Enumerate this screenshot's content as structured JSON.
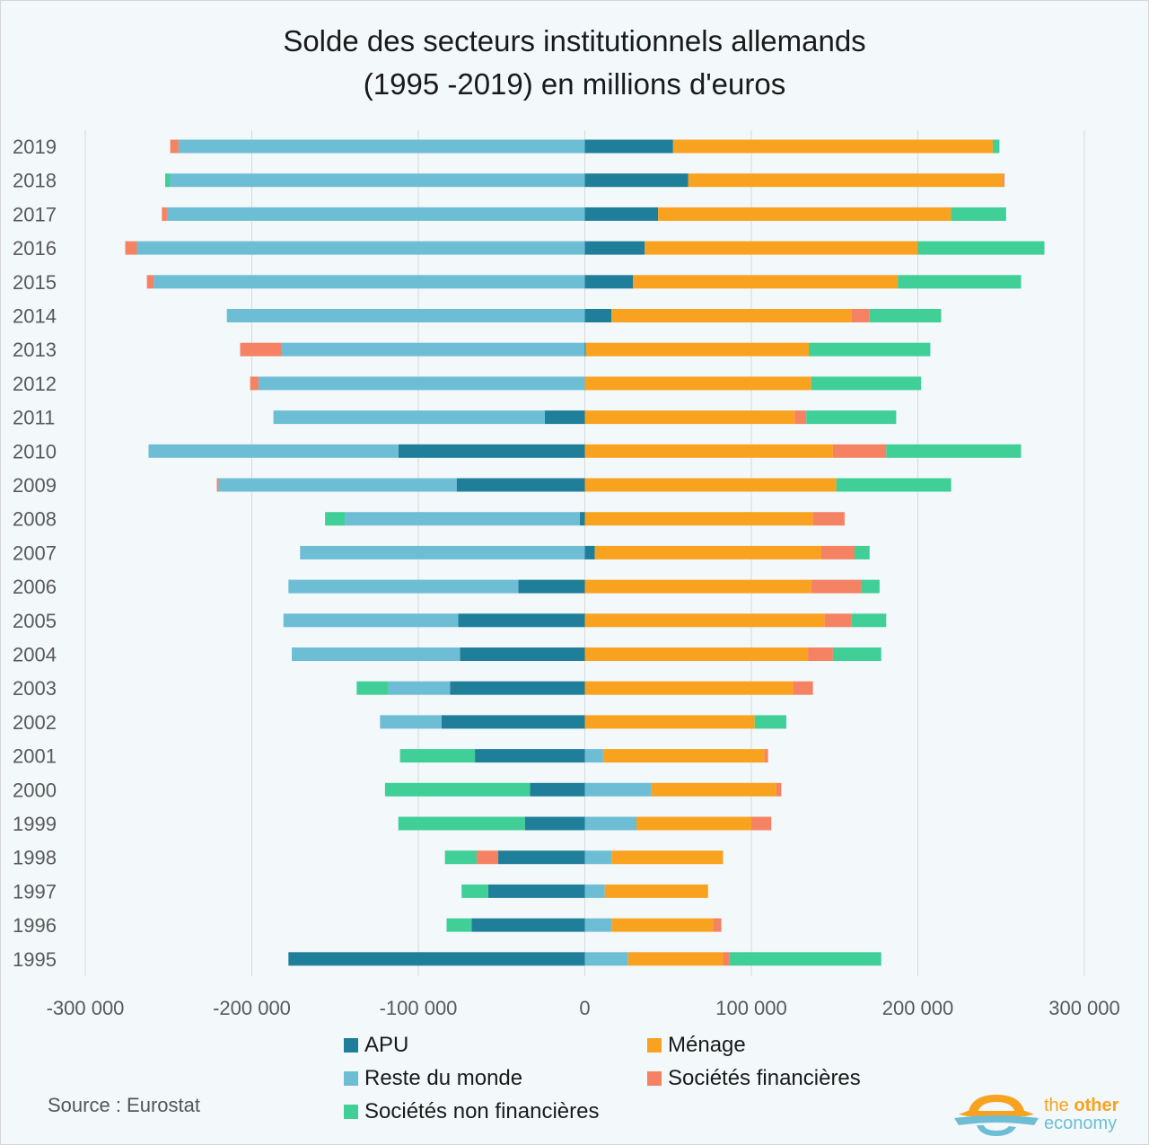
{
  "chart_data": {
    "type": "bar",
    "orientation": "horizontal",
    "stacked": "diverging",
    "title": "Solde des secteurs institutionnels allemands",
    "subtitle": "(1995 -2019) en millions d'euros",
    "xlabel": "",
    "ylabel": "",
    "xlim": [
      -300000,
      300000
    ],
    "xticks": [
      -300000,
      -200000,
      -100000,
      0,
      100000,
      200000,
      300000
    ],
    "xtick_labels": [
      "-300 000",
      "-200 000",
      "-100 000",
      "0",
      "100 000",
      "200 000",
      "300 000"
    ],
    "grid": true,
    "legend_position": "bottom",
    "categories": [
      "2019",
      "2018",
      "2017",
      "2016",
      "2015",
      "2014",
      "2013",
      "2012",
      "2011",
      "2010",
      "2009",
      "2008",
      "2007",
      "2006",
      "2005",
      "2004",
      "2003",
      "2002",
      "2001",
      "2000",
      "1999",
      "1998",
      "1997",
      "1996",
      "1995"
    ],
    "series": [
      {
        "name": "APU",
        "color": "#1f7f9a",
        "values": [
          53000,
          62000,
          44000,
          36000,
          29000,
          16000,
          500,
          0,
          -24000,
          -112000,
          -77000,
          -3000,
          6000,
          -40000,
          -76000,
          -75000,
          -81000,
          -86000,
          -66000,
          -33000,
          -36000,
          -52000,
          -58000,
          -68000,
          -178000
        ]
      },
      {
        "name": "Reste du monde",
        "color": "#6dbed5",
        "values": [
          -244000,
          -249000,
          -251000,
          -269000,
          -259000,
          -215000,
          -182000,
          -196000,
          -163000,
          -150000,
          -143000,
          -141000,
          -171000,
          -138000,
          -105000,
          -101000,
          -37000,
          -37000,
          11000,
          40000,
          31000,
          16000,
          12000,
          16000,
          26000
        ]
      },
      {
        "name": "Sociétés non financières",
        "color": "#3fcf97",
        "values": [
          4000,
          -3000,
          33000,
          76000,
          74000,
          43000,
          73000,
          66000,
          54000,
          81000,
          69000,
          -12000,
          9000,
          11000,
          21000,
          29000,
          -19000,
          19000,
          -45000,
          -87000,
          -76000,
          -19000,
          -16000,
          -15000,
          91000
        ]
      },
      {
        "name": "Ménage",
        "color": "#f8a21f",
        "values": [
          192000,
          189000,
          176000,
          164000,
          159000,
          144000,
          134000,
          136000,
          126000,
          149000,
          151000,
          137000,
          136000,
          136000,
          144000,
          134000,
          125000,
          102000,
          97000,
          75000,
          69000,
          67000,
          62000,
          61000,
          57000
        ]
      },
      {
        "name": "Sociétés financières",
        "color": "#f58262",
        "values": [
          -5000,
          1000,
          -3000,
          -7000,
          -4000,
          11000,
          -25000,
          -5000,
          7000,
          32000,
          -1000,
          19000,
          20000,
          30000,
          16000,
          15000,
          12000,
          0,
          2000,
          3000,
          12000,
          -13000,
          0,
          5000,
          4000
        ]
      }
    ]
  },
  "legend": {
    "items": [
      {
        "label": "APU",
        "color": "#1f7f9a"
      },
      {
        "label": "Ménage",
        "color": "#f8a21f"
      },
      {
        "label": "Reste du monde",
        "color": "#6dbed5"
      },
      {
        "label": "Sociétés financières",
        "color": "#f58262"
      },
      {
        "label": "Sociétés non financières",
        "color": "#3fcf97"
      }
    ]
  },
  "source": "Source : Eurostat",
  "logo": {
    "line1_a": "the ",
    "line1_b": "other",
    "line2": "economy"
  }
}
